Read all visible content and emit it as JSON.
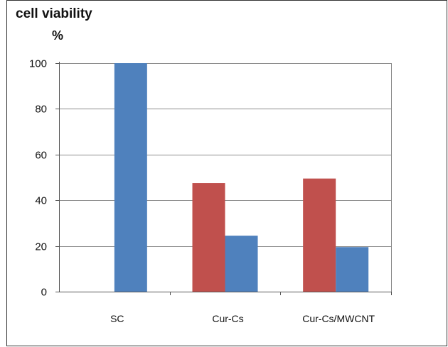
{
  "chart_data": {
    "type": "bar",
    "title": "cell viability",
    "ylabel": "%",
    "xlabel": "",
    "categories": [
      "SC",
      "Cur-Cs",
      "Cur-Cs/MWCNT"
    ],
    "series": [
      {
        "color": "#c0504d",
        "values": [
          0,
          47.5,
          49.5
        ]
      },
      {
        "color": "#4f81bd",
        "values": [
          100,
          24.5,
          19.5
        ]
      }
    ],
    "ylim": [
      0,
      100
    ],
    "yticks": [
      0,
      20,
      40,
      60,
      80,
      100
    ],
    "grid": true,
    "legend": "none"
  }
}
